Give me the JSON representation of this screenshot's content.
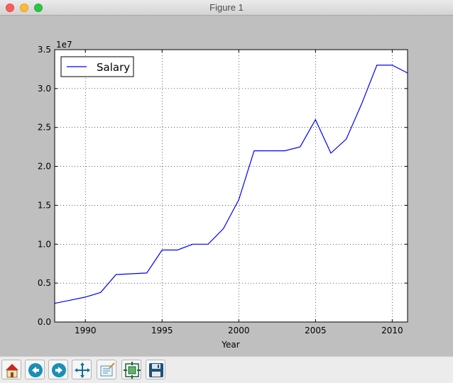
{
  "window": {
    "title": "Figure 1"
  },
  "toolbar": {
    "buttons": [
      {
        "name": "home-icon"
      },
      {
        "name": "back-arrow-icon"
      },
      {
        "name": "forward-arrow-icon"
      },
      {
        "name": "pan-icon"
      },
      {
        "name": "zoom-rect-icon"
      },
      {
        "name": "configure-subplots-icon"
      },
      {
        "name": "save-icon"
      }
    ]
  },
  "chart_data": {
    "type": "line",
    "title": "",
    "xlabel": "Year",
    "ylabel": "",
    "y_offset_label": "1e7",
    "xlim": [
      1988,
      2011
    ],
    "ylim": [
      0,
      3.5
    ],
    "xticks": [
      "1990",
      "1995",
      "2000",
      "2005",
      "2010"
    ],
    "xtick_values": [
      1990,
      1995,
      2000,
      2005,
      2010
    ],
    "yticks": [
      "0.0",
      "0.5",
      "1.0",
      "1.5",
      "2.0",
      "2.5",
      "3.0",
      "3.5"
    ],
    "ytick_values": [
      0,
      0.5,
      1.0,
      1.5,
      2.0,
      2.5,
      3.0,
      3.5
    ],
    "grid": true,
    "legend": "top-left",
    "color": "#0000ff",
    "series": [
      {
        "name": "Salary",
        "x": [
          1988,
          1989,
          1990,
          1991,
          1992,
          1993,
          1994,
          1995,
          1996,
          1997,
          1998,
          1999,
          2000,
          2001,
          2002,
          2003,
          2004,
          2005,
          2006,
          2007,
          2008,
          2009,
          2010,
          2011
        ],
        "y": [
          0.24,
          0.28,
          0.32,
          0.38,
          0.61,
          0.62,
          0.63,
          0.925,
          0.925,
          1.0,
          1.0,
          1.2,
          1.57,
          2.2,
          2.2,
          2.2,
          2.25,
          2.6,
          2.17,
          2.35,
          2.8,
          3.3,
          3.3,
          3.2
        ]
      }
    ]
  }
}
